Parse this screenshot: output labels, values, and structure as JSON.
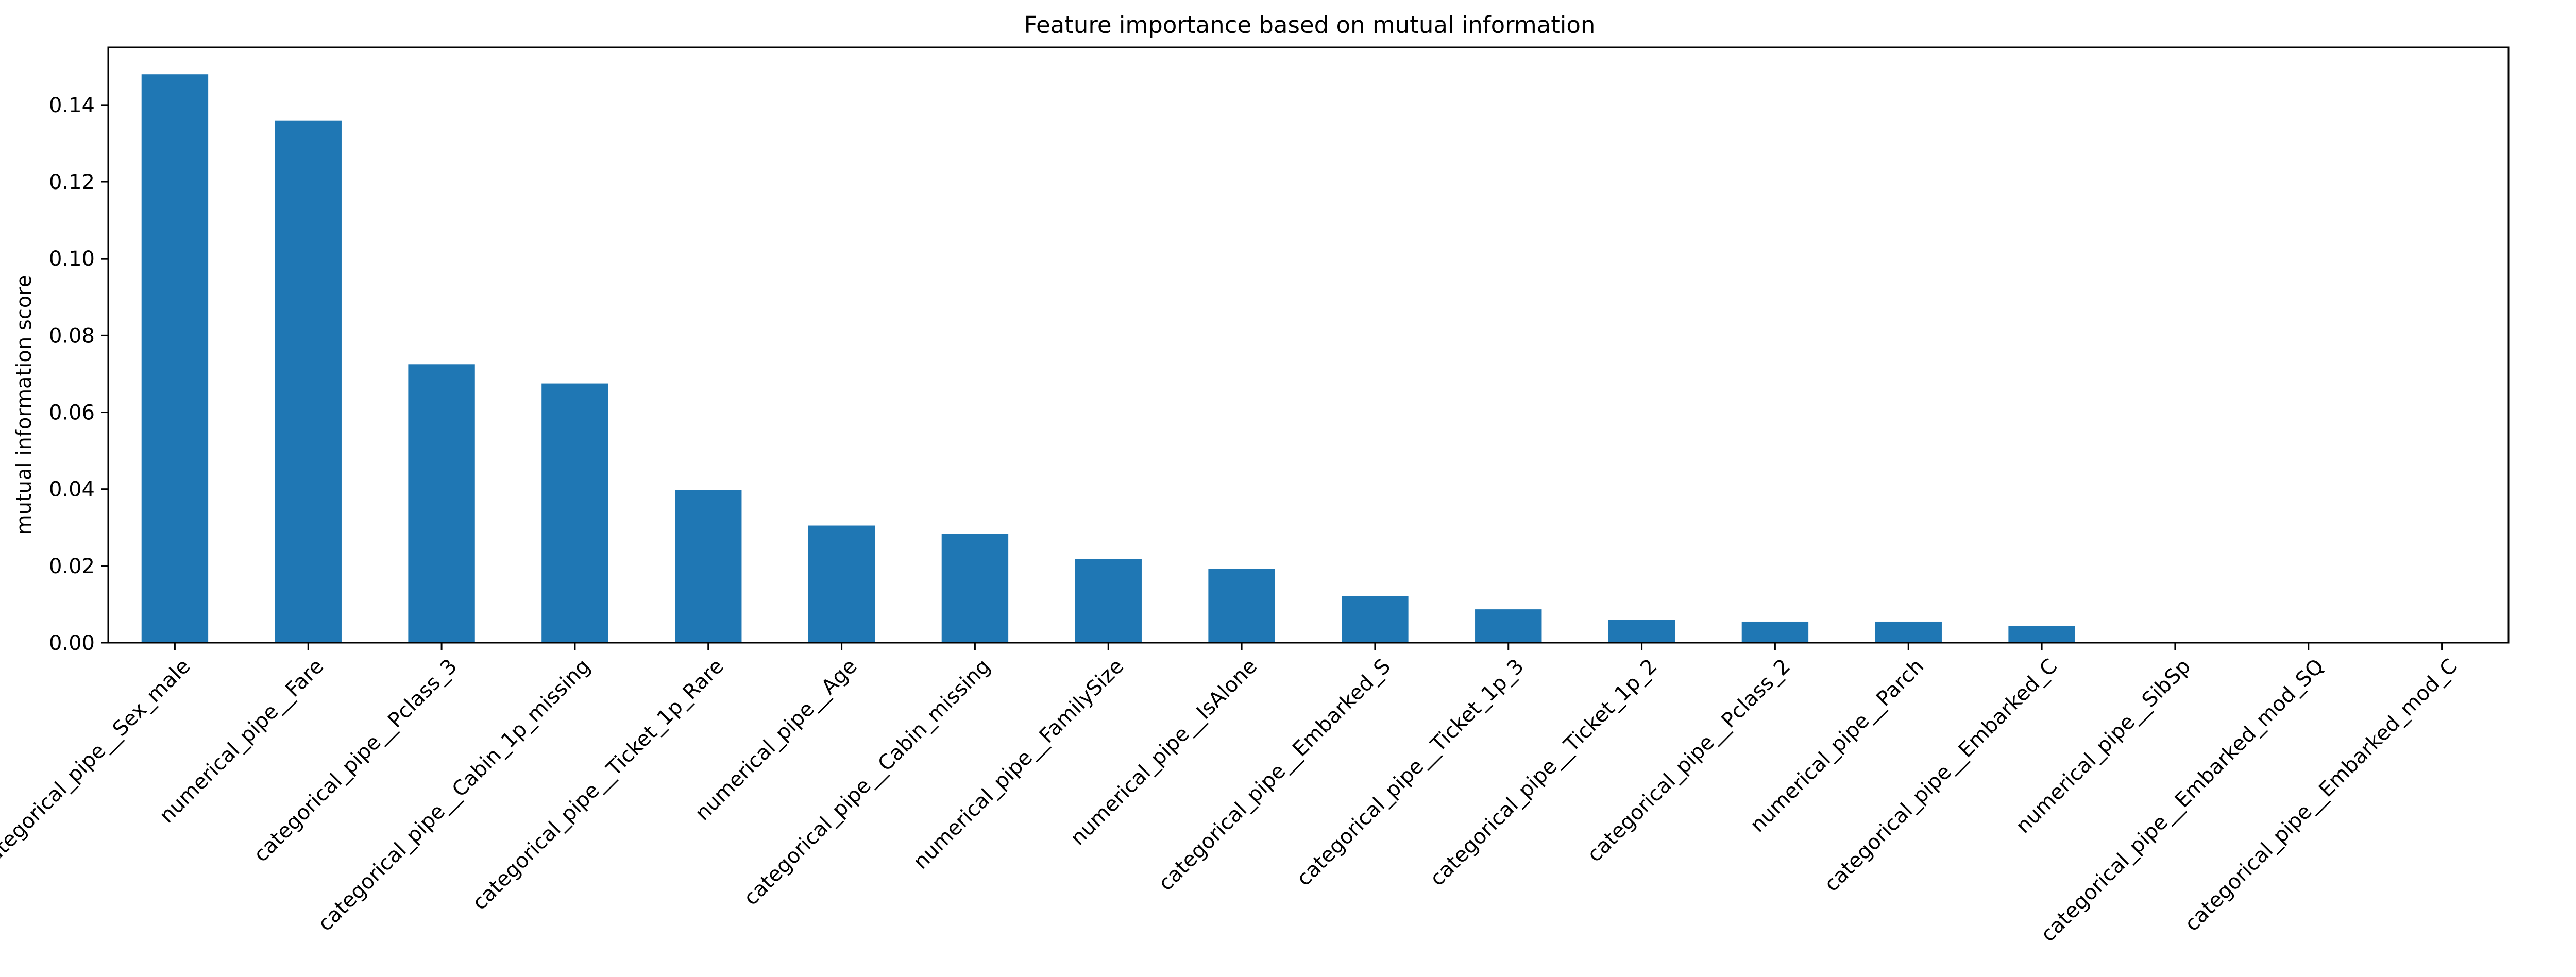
{
  "chart_data": {
    "type": "bar",
    "title": "Feature importance based on mutual information",
    "xlabel": "",
    "ylabel": "mutual information score",
    "categories": [
      "categorical_pipe__Sex_male",
      "numerical_pipe__Fare",
      "categorical_pipe__Pclass_3",
      "categorical_pipe__Cabin_1p_missing",
      "categorical_pipe__Ticket_1p_Rare",
      "numerical_pipe__Age",
      "categorical_pipe__Cabin_missing",
      "numerical_pipe__FamilySize",
      "numerical_pipe__IsAlone",
      "categorical_pipe__Embarked_S",
      "categorical_pipe__Ticket_1p_3",
      "categorical_pipe__Ticket_1p_2",
      "categorical_pipe__Pclass_2",
      "numerical_pipe__Parch",
      "categorical_pipe__Embarked_C",
      "numerical_pipe__SibSp",
      "categorical_pipe__Embarked_mod_SQ",
      "categorical_pipe__Embarked_mod_C"
    ],
    "values": [
      0.148,
      0.136,
      0.0725,
      0.0675,
      0.0398,
      0.0305,
      0.0283,
      0.0218,
      0.0193,
      0.0122,
      0.0087,
      0.0059,
      0.0055,
      0.0055,
      0.0044,
      0.0,
      0.0,
      0.0
    ],
    "ylim": [
      0,
      0.155
    ],
    "yticks": [
      0.0,
      0.02,
      0.04,
      0.06,
      0.08,
      0.1,
      0.12,
      0.14
    ],
    "ytick_labels": [
      "0.00",
      "0.02",
      "0.04",
      "0.06",
      "0.08",
      "0.10",
      "0.12",
      "0.14"
    ],
    "bar_color": "#1f77b4",
    "grid": false,
    "legend": "none"
  }
}
